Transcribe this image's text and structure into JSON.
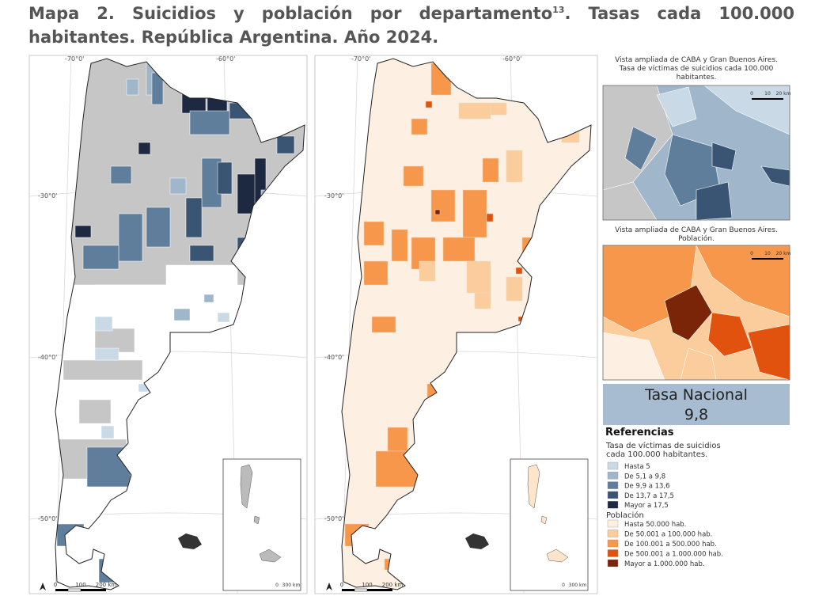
{
  "title": {
    "main": "Mapa 2. Suicidios y población por departamento",
    "sup": "13",
    "rest": ". Tasas cada 100.000 habitantes. República Argentina. Año 2024."
  },
  "maps": [
    {
      "graticule": [
        "-70°0'",
        "-60°0'",
        "-30°0'",
        "-40°0'",
        "-50°0'"
      ],
      "scale": [
        "0",
        "100",
        "200 km"
      ],
      "inset_scale": [
        "0",
        "300 km"
      ]
    },
    {
      "graticule": [
        "-70°0'",
        "-60°0'",
        "-30°0'",
        "-40°0'",
        "-50°0'"
      ],
      "scale": [
        "0",
        "100",
        "200 km"
      ],
      "inset_scale": [
        "0",
        "300 km"
      ]
    }
  ],
  "zoom_insets": [
    {
      "title_lines": [
        "Vista ampliada de CABA y Gran Buenos Aires.",
        "Tasa de víctimas de suicidios cada 100.000",
        "habitantes."
      ],
      "scale": [
        "0",
        "10",
        "20 km"
      ]
    },
    {
      "title_lines": [
        "Vista ampliada de CABA y Gran Buenos Aires.",
        "Población."
      ],
      "scale": [
        "0",
        "10",
        "20 km"
      ]
    }
  ],
  "national_rate": {
    "label": "Tasa Nacional",
    "value": "9,8"
  },
  "legend": {
    "heading": "Referencias",
    "rate_caption": [
      "Tasa de víctimas de suicidios",
      "cada 100.000 habitantes."
    ],
    "rate_items": [
      {
        "label": "Hasta 5",
        "color": "#c9dae6"
      },
      {
        "label": "De 5,1 a 9,8",
        "color": "#9fb6cb"
      },
      {
        "label": "De 9,9 a 13,6",
        "color": "#5f7e9b"
      },
      {
        "label": "De 13,7 a 17,5",
        "color": "#3a5573"
      },
      {
        "label": "Mayor a 17,5",
        "color": "#1d2940"
      }
    ],
    "population_caption": "Población",
    "population_items": [
      {
        "label": "Hasta 50.000 hab.",
        "color": "#fdf0e2"
      },
      {
        "label": "De 50.001 a 100.000 hab.",
        "color": "#fbcd9c"
      },
      {
        "label": "De 100.001 a 500.000 hab.",
        "color": "#f7974c"
      },
      {
        "label": "De 500.001 a 1.000.000 hab.",
        "color": "#e0520e"
      },
      {
        "label": "Mayor a 1.000.000 hab.",
        "color": "#7a2408"
      }
    ]
  }
}
